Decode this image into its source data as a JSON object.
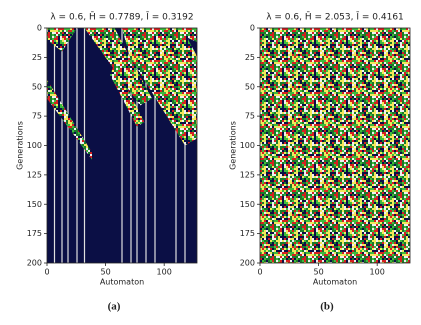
{
  "chart_data": [
    {
      "type": "heatmap",
      "title": "λ = 0.6, H̄ = 0.7789, Ī = 0.3192",
      "caption": "(a)",
      "x_label": "Automaton",
      "y_label": "Generations",
      "xlim": [
        0,
        128
      ],
      "xticks": [
        0,
        50,
        100
      ],
      "ylim": [
        200,
        0
      ],
      "yticks": [
        0,
        25,
        50,
        75,
        100,
        125,
        150,
        175,
        200
      ]
    },
    {
      "type": "heatmap",
      "title": "λ = 0.6, H̄ = 2.053, Ī = 0.4161",
      "caption": "(b)",
      "x_label": "Automaton",
      "y_label": "Generations",
      "xlim": [
        0,
        128
      ],
      "xticks": [
        0,
        50,
        100
      ],
      "ylim": [
        200,
        0
      ],
      "yticks": [
        0,
        25,
        50,
        75,
        100,
        125,
        150,
        175,
        200
      ]
    }
  ]
}
